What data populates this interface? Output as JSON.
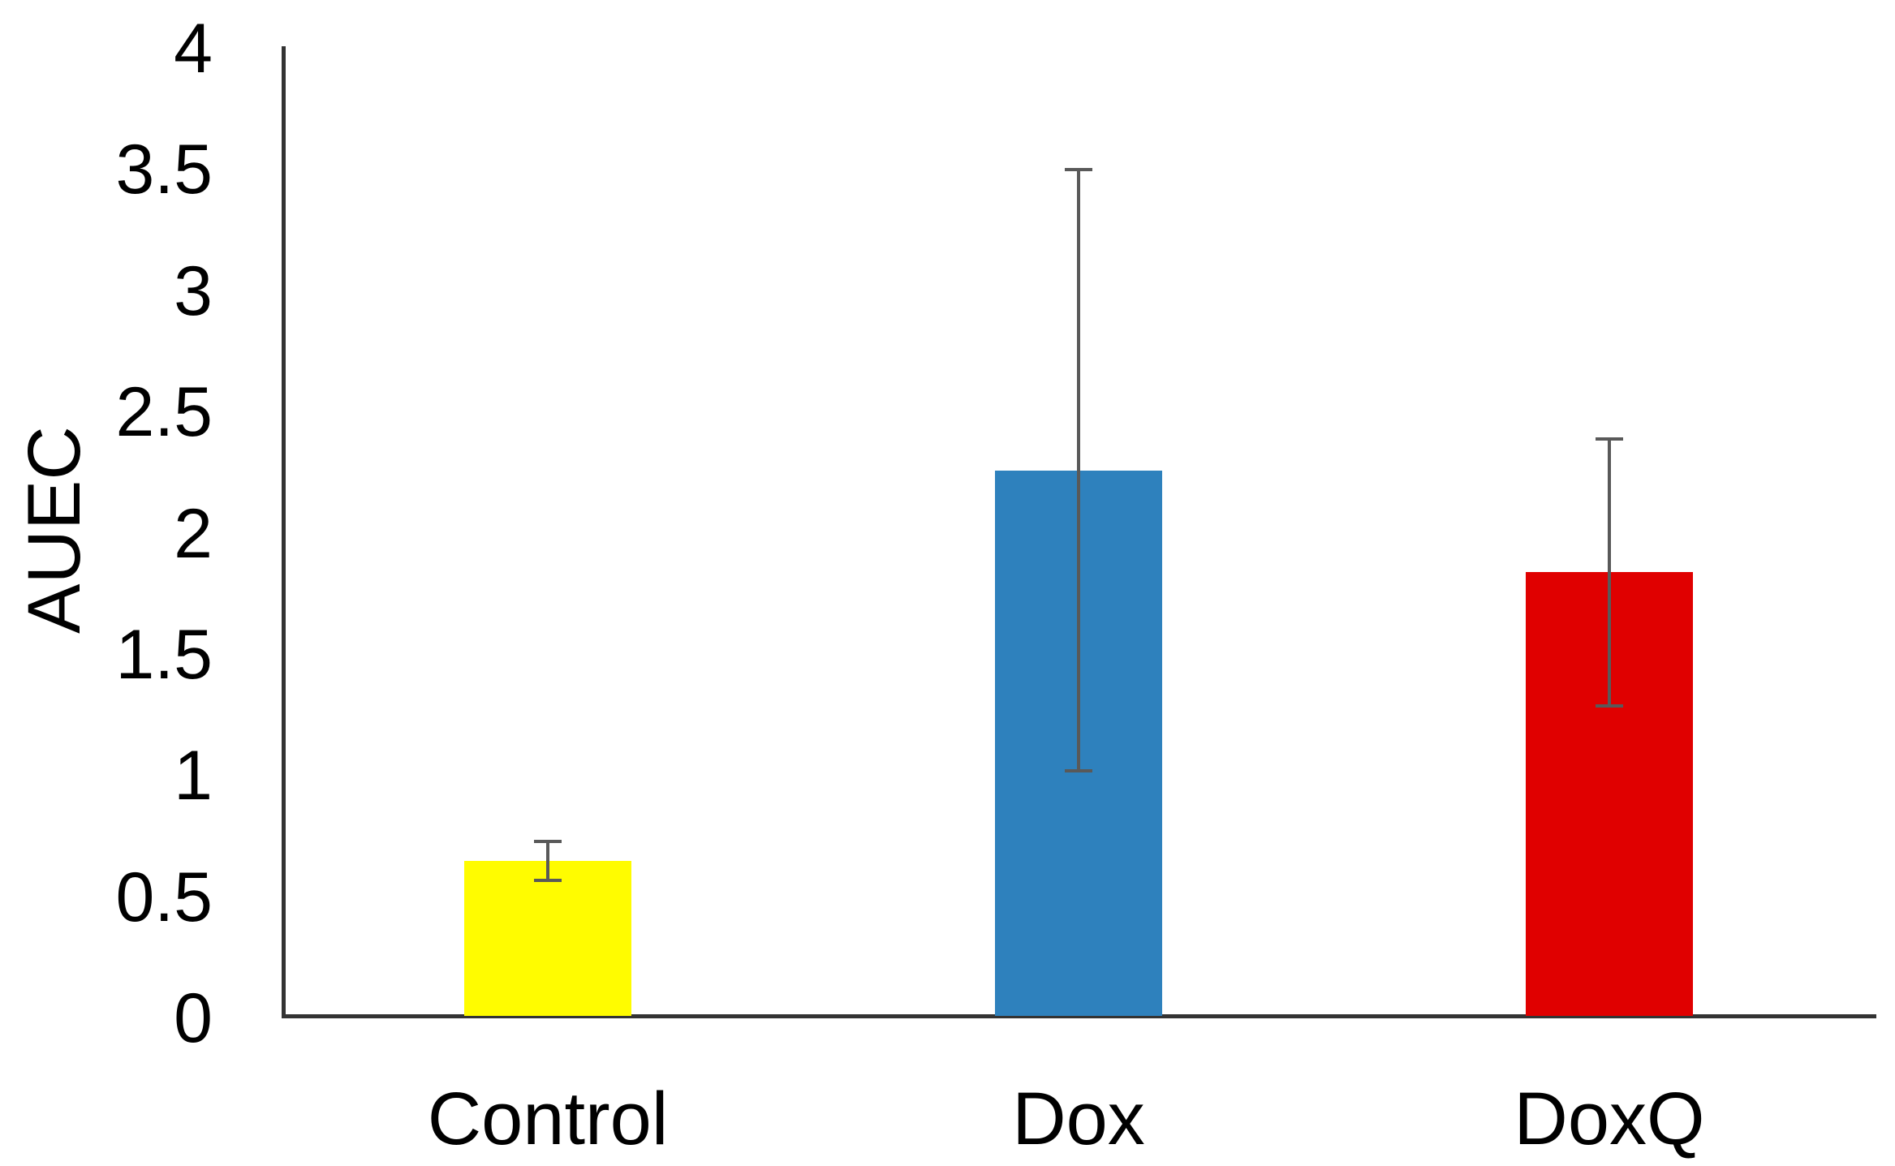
{
  "chart_data": {
    "type": "bar",
    "title": "",
    "ylabel": "AUEC",
    "xlabel": "",
    "categories": [
      "Control",
      "Dox",
      "DoxQ"
    ],
    "values": [
      0.64,
      2.25,
      1.83
    ],
    "errors_symmetric": [
      0.08,
      1.24,
      0.55
    ],
    "error_whisker_tops": [
      0.72,
      3.49,
      2.38
    ],
    "error_whisker_bottoms": [
      0.56,
      1.01,
      1.28
    ],
    "ylim": [
      0,
      4
    ],
    "ytick_labels": [
      "0",
      "0.5",
      "1",
      "1.5",
      "2",
      "2.5",
      "3",
      "3.5",
      "4"
    ],
    "grid": false,
    "legend_position": "none",
    "bar_colors": [
      "#FFFC00",
      "#2E81BD",
      "#E00000"
    ],
    "error_bar_color": "#595959",
    "axis_color": "#333333",
    "text_color": "#000000"
  }
}
